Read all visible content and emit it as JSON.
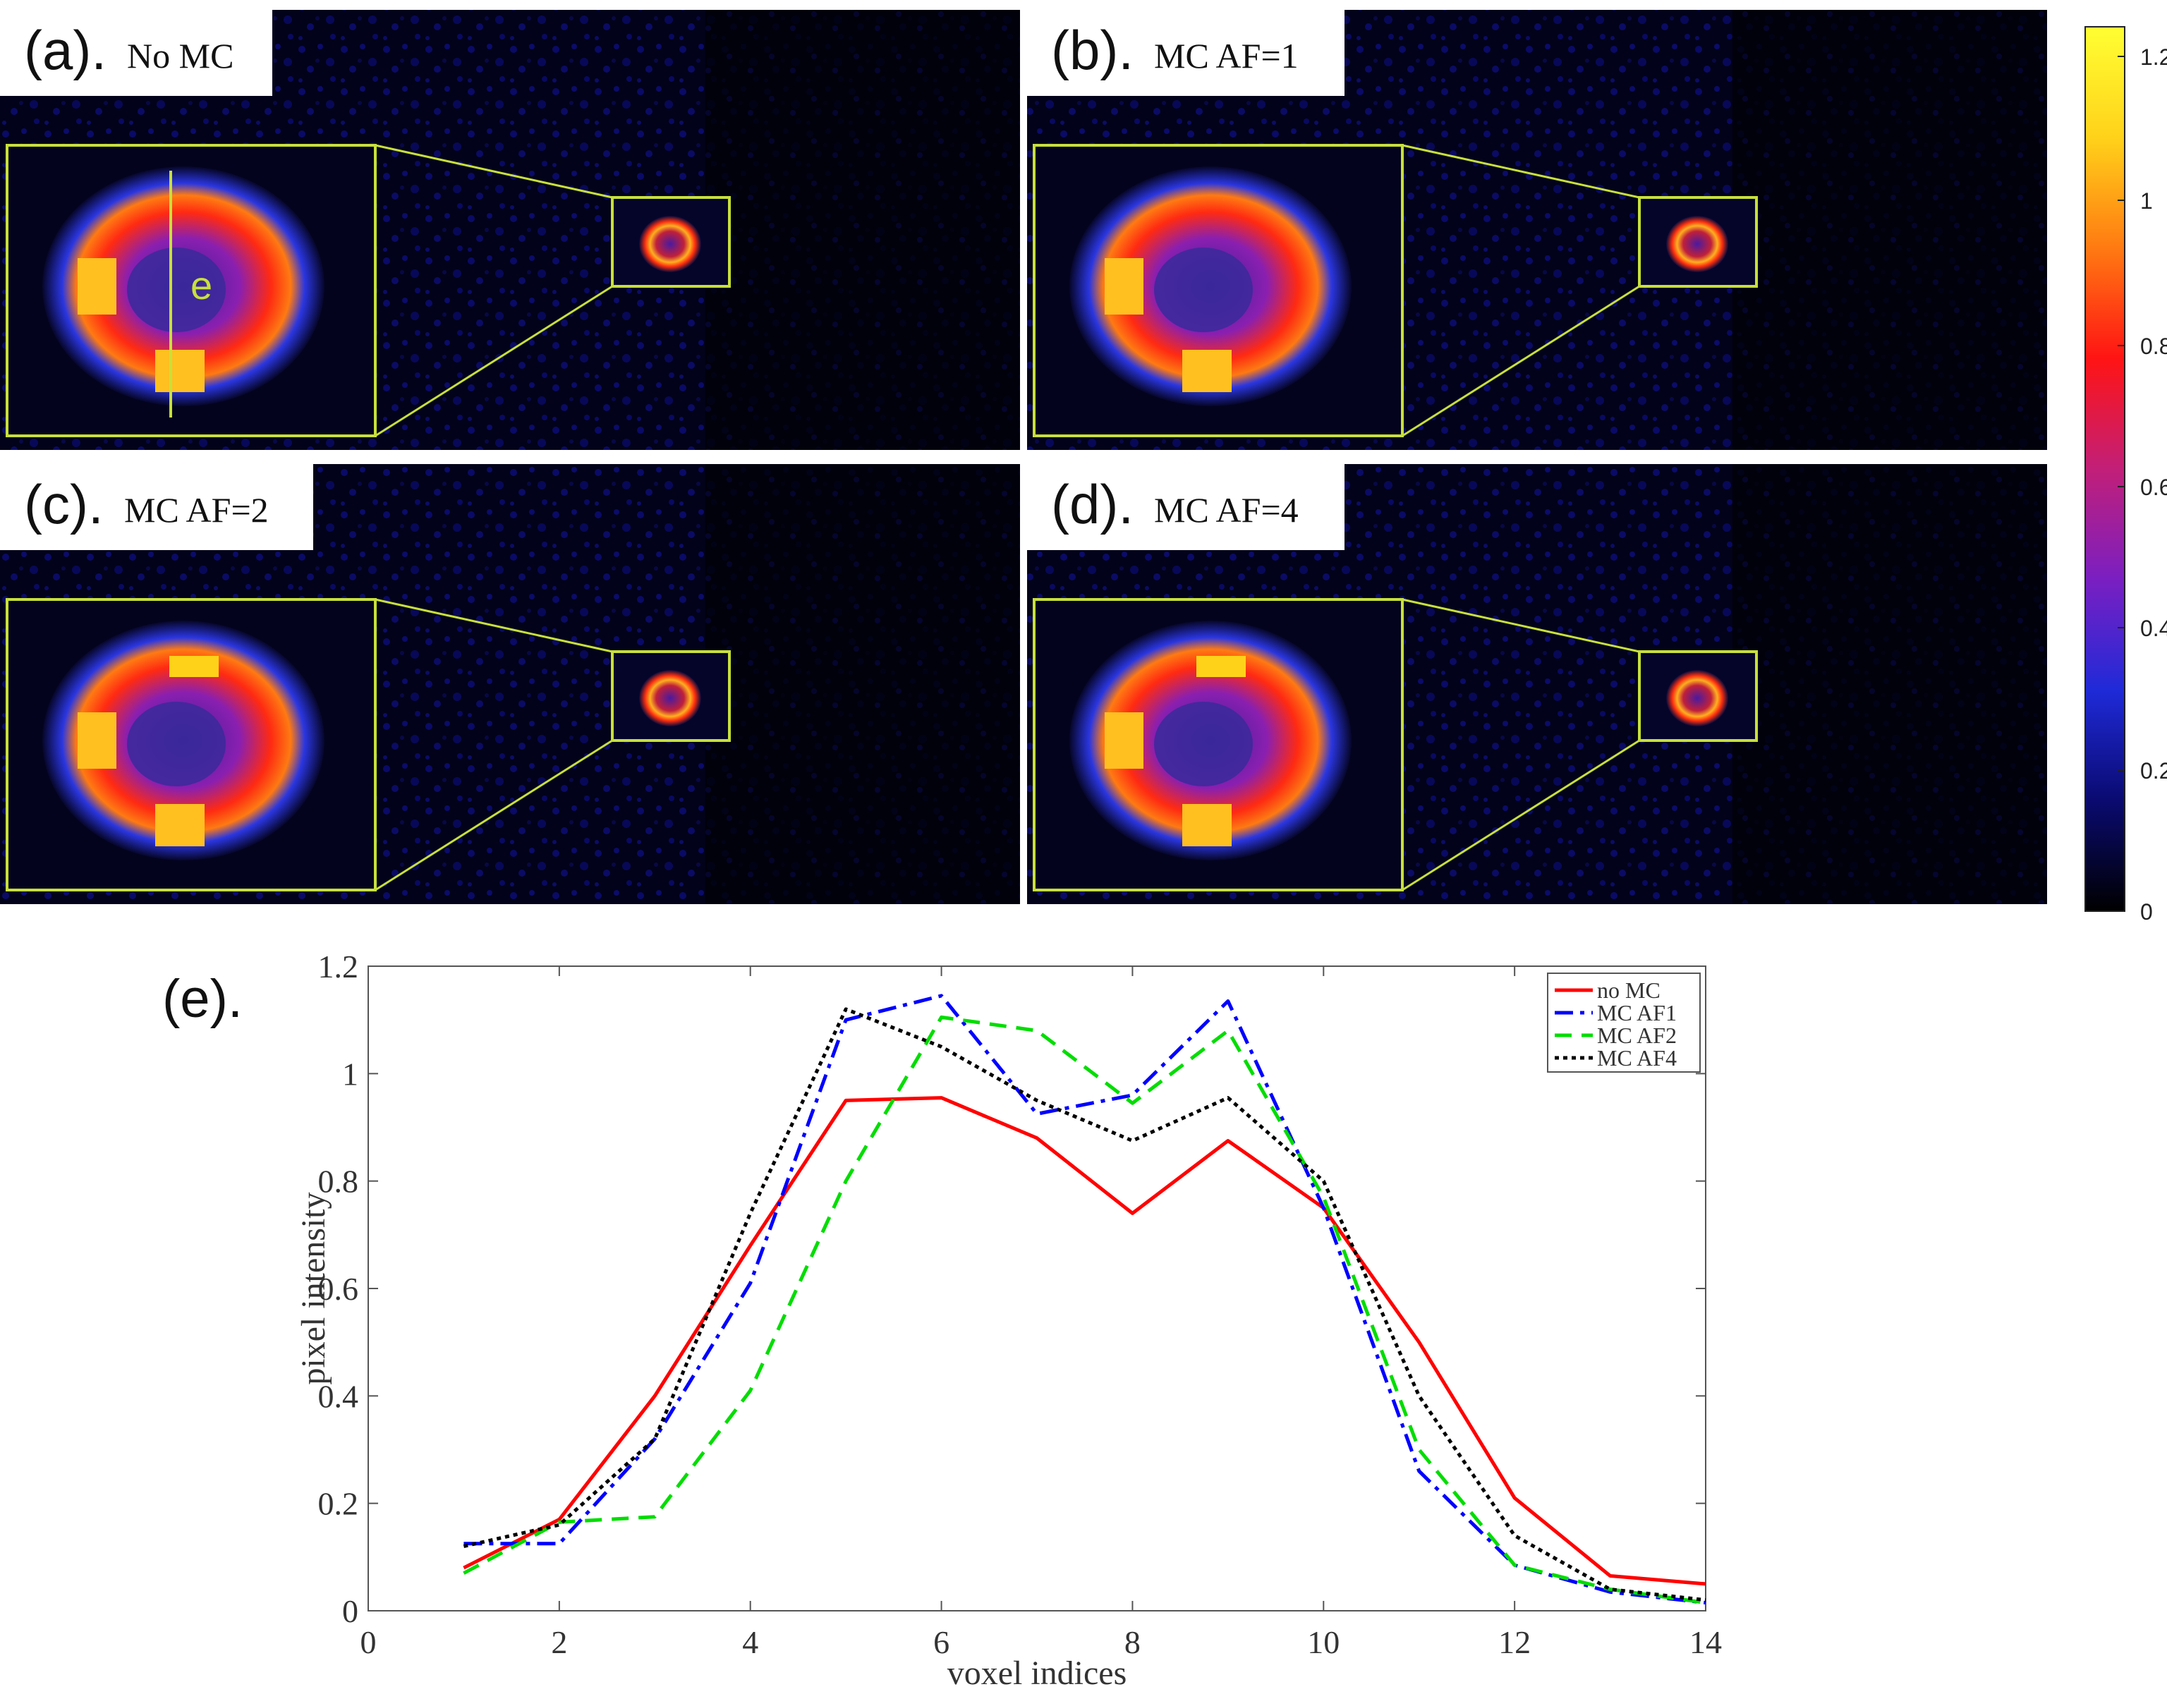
{
  "panels": [
    {
      "letter": "(a).",
      "caption": "No MC",
      "inset_marker": "e"
    },
    {
      "letter": "(b).",
      "caption": "MC AF=1"
    },
    {
      "letter": "(c).",
      "caption": "MC AF=2"
    },
    {
      "letter": "(d).",
      "caption": "MC AF=4"
    }
  ],
  "colorbar": {
    "ticks": [
      "1.2",
      "1",
      "0.8",
      "0.6",
      "0.4",
      "0.2",
      "0"
    ],
    "colors": [
      "#000000",
      "#0a0a70",
      "#1f2ad8",
      "#7a1fc2",
      "#c21f78",
      "#ff1414",
      "#ff7a12",
      "#ffd21a",
      "#ffff33"
    ]
  },
  "chart_panel_label": "(e).",
  "chart_data": {
    "type": "line",
    "title": "",
    "xlabel": "voxel indices",
    "ylabel": "pixel intensity",
    "xlim": [
      0,
      14
    ],
    "ylim": [
      0,
      1.2
    ],
    "xticks": [
      0,
      2,
      4,
      6,
      8,
      10,
      12,
      14
    ],
    "yticks": [
      0,
      0.2,
      0.4,
      0.6,
      0.8,
      1,
      1.2
    ],
    "xtick_labels": [
      "0",
      "2",
      "4",
      "6",
      "8",
      "10",
      "12",
      "14"
    ],
    "ytick_labels": [
      "0",
      "0.2",
      "0.4",
      "0.6",
      "0.8",
      "1",
      "1.2"
    ],
    "x": [
      1,
      2,
      3,
      4,
      5,
      6,
      7,
      8,
      9,
      10,
      11,
      12,
      13,
      14
    ],
    "legend_position": "top-right",
    "series": [
      {
        "name": "no MC",
        "color": "#ff0000",
        "dash": "solid",
        "values": [
          0.08,
          0.17,
          0.4,
          0.68,
          0.95,
          0.955,
          0.88,
          0.74,
          0.875,
          0.75,
          0.5,
          0.21,
          0.065,
          0.05
        ]
      },
      {
        "name": "MC AF1",
        "color": "#0000ff",
        "dash": "dashdot",
        "values": [
          0.125,
          0.125,
          0.32,
          0.61,
          1.1,
          1.145,
          0.925,
          0.96,
          1.135,
          0.75,
          0.26,
          0.085,
          0.035,
          0.015
        ]
      },
      {
        "name": "MC AF2",
        "color": "#00dd00",
        "dash": "dashed",
        "values": [
          0.07,
          0.165,
          0.175,
          0.41,
          0.8,
          1.105,
          1.08,
          0.945,
          1.08,
          0.77,
          0.3,
          0.085,
          0.04,
          0.015
        ]
      },
      {
        "name": "MC AF4",
        "color": "#000000",
        "dash": "dotted",
        "values": [
          0.12,
          0.16,
          0.32,
          0.74,
          1.12,
          1.05,
          0.95,
          0.875,
          0.955,
          0.8,
          0.4,
          0.14,
          0.04,
          0.02
        ]
      }
    ]
  }
}
